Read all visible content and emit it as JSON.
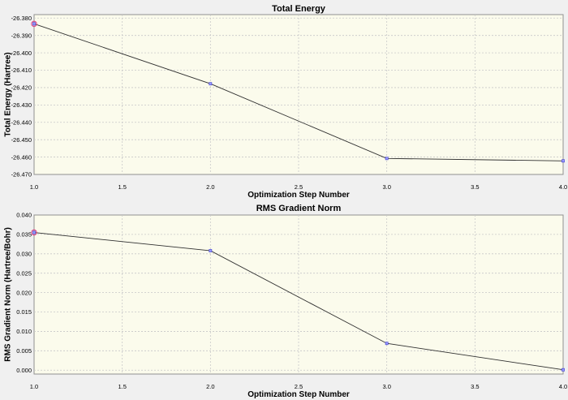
{
  "chart_data": [
    {
      "type": "line",
      "title": "Total Energy",
      "xlabel": "Optimization Step Number",
      "ylabel": "Total Energy (Hartree)",
      "x": [
        1.0,
        2.0,
        3.0,
        4.0
      ],
      "series": [
        {
          "values": [
            -26.3833,
            -26.4178,
            -26.4608,
            -26.4622
          ]
        }
      ],
      "xlim": [
        1.0,
        4.0
      ],
      "ylim": [
        -26.47,
        -26.378
      ],
      "xticks": [
        "1.0",
        "1.5",
        "2.0",
        "2.5",
        "3.0",
        "3.5",
        "4.0"
      ],
      "xtick_values": [
        1.0,
        1.5,
        2.0,
        2.5,
        3.0,
        3.5,
        4.0
      ],
      "yticks": [
        "-26.380",
        "-26.390",
        "-26.400",
        "-26.410",
        "-26.420",
        "-26.430",
        "-26.440",
        "-26.450",
        "-26.460",
        "-26.470"
      ],
      "ytick_values": [
        -26.38,
        -26.39,
        -26.4,
        -26.41,
        -26.42,
        -26.43,
        -26.44,
        -26.45,
        -26.46,
        -26.47
      ],
      "highlighted_point_index": 0,
      "grid": true,
      "colors": {
        "line": "#303030",
        "point": "#6060ff",
        "highlight": "#e04080",
        "plot_bg": "#fbfbec"
      }
    },
    {
      "type": "line",
      "title": "RMS Gradient Norm",
      "xlabel": "Optimization Step Number",
      "ylabel": "RMS Gradient Norm (Hartree/Bohr)",
      "x": [
        1.0,
        2.0,
        3.0,
        4.0
      ],
      "series": [
        {
          "values": [
            0.0355,
            0.0308,
            0.0069,
            0.0001
          ]
        }
      ],
      "xlim": [
        1.0,
        4.0
      ],
      "ylim": [
        -0.001,
        0.04
      ],
      "xticks": [
        "1.0",
        "1.5",
        "2.0",
        "2.5",
        "3.0",
        "3.5",
        "4.0"
      ],
      "xtick_values": [
        1.0,
        1.5,
        2.0,
        2.5,
        3.0,
        3.5,
        4.0
      ],
      "yticks": [
        "0.040",
        "0.035",
        "0.030",
        "0.025",
        "0.020",
        "0.015",
        "0.010",
        "0.005",
        "0.000"
      ],
      "ytick_values": [
        0.04,
        0.035,
        0.03,
        0.025,
        0.02,
        0.015,
        0.01,
        0.005,
        0.0
      ],
      "highlighted_point_index": 0,
      "grid": true,
      "colors": {
        "line": "#303030",
        "point": "#6060ff",
        "highlight": "#e04080",
        "plot_bg": "#fbfbec"
      }
    }
  ]
}
